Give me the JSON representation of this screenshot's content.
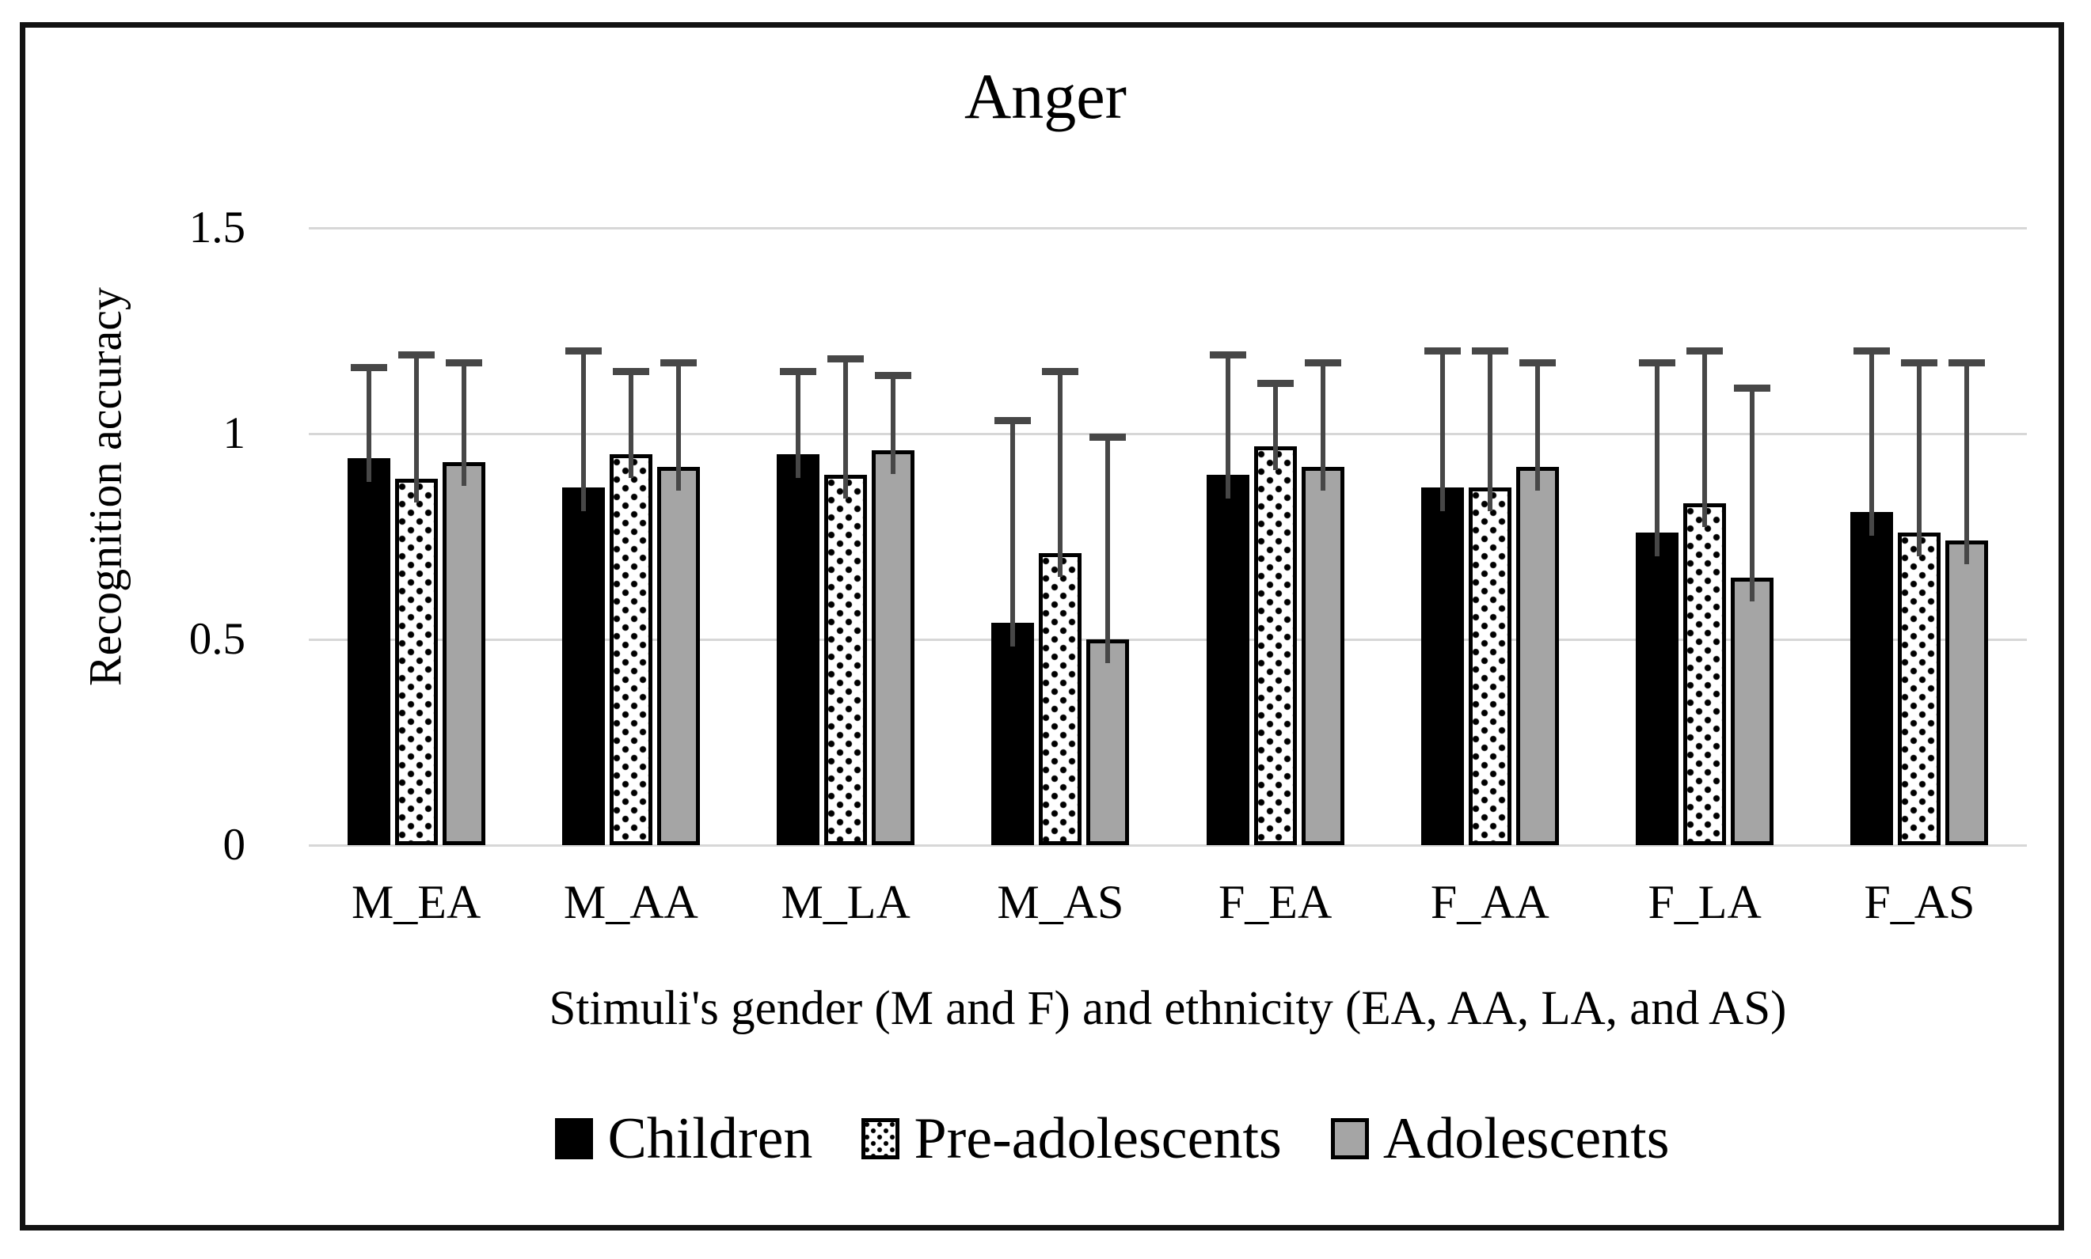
{
  "title": "Anger",
  "chart_data": {
    "type": "bar",
    "title": "Anger",
    "xlabel": "Stimuli's gender (M and F) and ethnicity (EA, AA, LA, and AS)",
    "ylabel": "Recognition accuracy",
    "ylim": [
      0,
      1.5
    ],
    "yticks": [
      {
        "label": "0",
        "value": 0
      },
      {
        "label": "0.5",
        "value": 0.5
      },
      {
        "label": "1",
        "value": 1
      },
      {
        "label": "1.5",
        "value": 1.5
      }
    ],
    "gridlines": true,
    "legend_position": "bottom",
    "error_bars": "upper",
    "categories": [
      "M_EA",
      "M_AA",
      "M_LA",
      "M_AS",
      "F_EA",
      "F_AA",
      "F_LA",
      "F_AS"
    ],
    "series": [
      {
        "name": "Children",
        "pattern": "solid-black",
        "values": [
          0.94,
          0.87,
          0.95,
          0.54,
          0.9,
          0.87,
          0.76,
          0.81
        ],
        "errors": [
          0.23,
          0.34,
          0.21,
          0.5,
          0.3,
          0.34,
          0.42,
          0.4
        ]
      },
      {
        "name": "Pre-adolescents",
        "pattern": "dotted",
        "values": [
          0.89,
          0.95,
          0.9,
          0.71,
          0.97,
          0.87,
          0.83,
          0.76
        ],
        "errors": [
          0.31,
          0.21,
          0.29,
          0.45,
          0.16,
          0.34,
          0.38,
          0.42
        ]
      },
      {
        "name": "Adolescents",
        "pattern": "solid-gray",
        "values": [
          0.93,
          0.92,
          0.96,
          0.5,
          0.92,
          0.92,
          0.65,
          0.74
        ],
        "errors": [
          0.25,
          0.26,
          0.19,
          0.5,
          0.26,
          0.26,
          0.47,
          0.44
        ]
      }
    ],
    "colors": {
      "black_bar": "#000000",
      "gray_bar": "#a5a5a5",
      "bar_border": "#000000",
      "error_bar": "#474747",
      "gridline": "#d7d7d7",
      "frame_border": "#131313",
      "text": "#000000"
    }
  }
}
